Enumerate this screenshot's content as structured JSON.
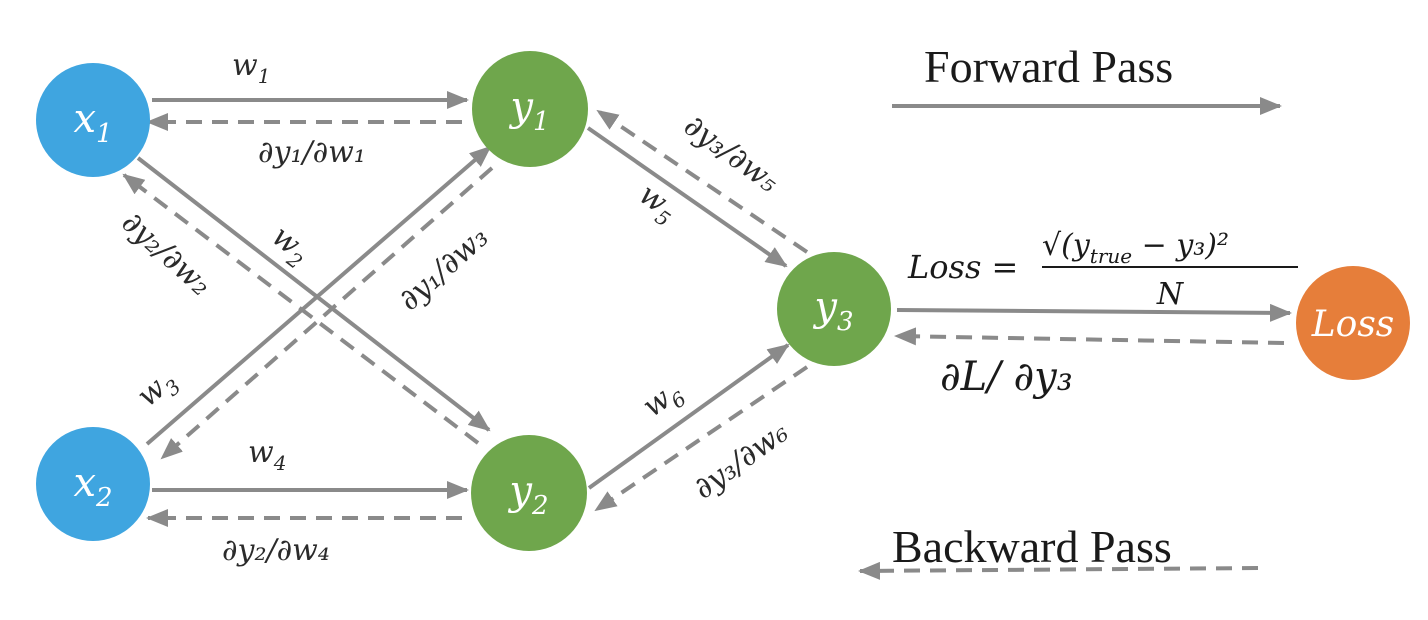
{
  "nodes": {
    "x1": {
      "base": "x",
      "sub": "1",
      "color": "#3fa5e0"
    },
    "x2": {
      "base": "x",
      "sub": "2",
      "color": "#3fa5e0"
    },
    "y1": {
      "base": "y",
      "sub": "1",
      "color": "#6fa64c"
    },
    "y2": {
      "base": "y",
      "sub": "2",
      "color": "#6fa64c"
    },
    "y3": {
      "base": "y",
      "sub": "3",
      "color": "#6fa64c"
    },
    "loss": {
      "label": "Loss",
      "color": "#e67e3a"
    }
  },
  "edges": {
    "x1_y1": {
      "w": "w",
      "wsub": "1",
      "grad": "∂y₁/∂w₁"
    },
    "x1_y2": {
      "w": "w",
      "wsub": "2",
      "grad": "∂y₂/∂w₂"
    },
    "x2_y1": {
      "w": "w",
      "wsub": "3",
      "grad": "∂y₁/∂w₃"
    },
    "x2_y2": {
      "w": "w",
      "wsub": "4",
      "grad": "∂y₂/∂w₄"
    },
    "y1_y3": {
      "w": "w",
      "wsub": "5",
      "grad": "∂y₃/∂w₅"
    },
    "y2_y3": {
      "w": "w",
      "wsub": "6",
      "grad": "∂y₃/∂w₆"
    },
    "y3_loss": {
      "grad": "∂L/ ∂y₃"
    }
  },
  "formula": {
    "lhs": "Loss =",
    "numerator": "√(y",
    "numerator_sub": "true",
    "numerator_rest": " − y₃)²",
    "denominator": "N"
  },
  "legend": {
    "forward": "Forward Pass",
    "backward": "Backward Pass"
  },
  "colors": {
    "arrow": "#8a8a8a",
    "text": "#1a1a1a"
  }
}
